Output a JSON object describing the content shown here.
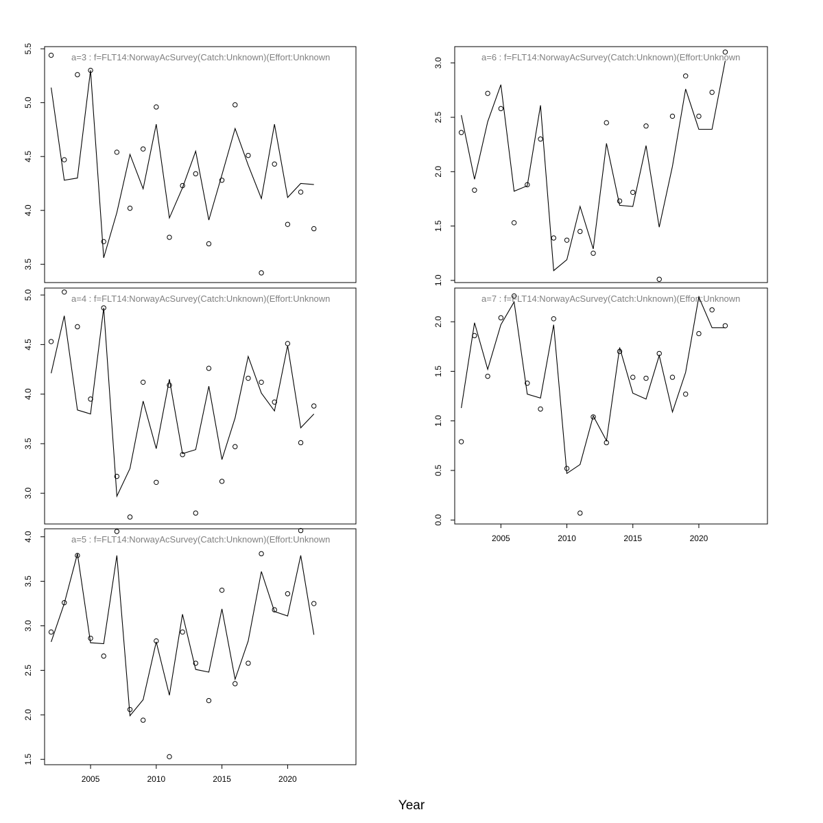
{
  "figure": {
    "xlabel": "Year"
  },
  "chart_data": [
    {
      "type": "line",
      "title": "a=3  :  f=FLT14:NorwayAcSurvey(Catch:Unknown)(Effort:Unknown",
      "xlim": [
        2001.5,
        2025.2
      ],
      "ylim": [
        3.33,
        5.52
      ],
      "yticks": [
        "3.5",
        "4.0",
        "4.5",
        "5.0",
        "5.5"
      ],
      "xticks": [],
      "x": [
        2002,
        2003,
        2004,
        2005,
        2006,
        2007,
        2008,
        2009,
        2010,
        2011,
        2012,
        2013,
        2014,
        2015,
        2016,
        2017,
        2018,
        2019,
        2020,
        2021,
        2022
      ],
      "series": [
        {
          "kind": "line",
          "values": [
            5.14,
            4.28,
            4.3,
            5.3,
            3.56,
            3.98,
            4.52,
            4.2,
            4.8,
            3.93,
            4.21,
            4.55,
            3.91,
            4.33,
            4.76,
            4.42,
            4.11,
            4.8,
            4.12,
            4.25,
            4.24
          ]
        },
        {
          "kind": "points",
          "values": [
            5.44,
            4.47,
            5.26,
            5.3,
            3.71,
            4.54,
            4.02,
            4.57,
            4.96,
            3.75,
            4.23,
            4.34,
            3.69,
            4.28,
            4.98,
            4.51,
            3.42,
            4.43,
            3.87,
            4.17,
            3.83
          ]
        }
      ]
    },
    {
      "type": "line",
      "title": "a=4  :  f=FLT14:NorwayAcSurvey(Catch:Unknown)(Effort:Unknown",
      "xlim": [
        2001.5,
        2025.2
      ],
      "ylim": [
        2.69,
        5.07
      ],
      "yticks": [
        "3.0",
        "3.5",
        "4.0",
        "4.5",
        "5.0"
      ],
      "xticks": [],
      "x": [
        2002,
        2003,
        2004,
        2005,
        2006,
        2007,
        2008,
        2009,
        2010,
        2011,
        2012,
        2013,
        2014,
        2015,
        2016,
        2017,
        2018,
        2019,
        2020,
        2021,
        2022
      ],
      "series": [
        {
          "kind": "line",
          "values": [
            4.21,
            4.79,
            3.84,
            3.8,
            4.87,
            2.97,
            3.25,
            3.93,
            3.45,
            4.15,
            3.4,
            3.44,
            4.08,
            3.34,
            3.76,
            4.38,
            4.01,
            3.83,
            4.49,
            3.66,
            3.8
          ]
        },
        {
          "kind": "points",
          "values": [
            4.53,
            5.03,
            4.68,
            3.95,
            4.87,
            3.17,
            2.76,
            4.12,
            3.11,
            4.09,
            3.39,
            2.8,
            4.26,
            3.12,
            3.47,
            4.16,
            4.12,
            3.92,
            4.51,
            3.51,
            3.88
          ]
        }
      ]
    },
    {
      "type": "line",
      "title": "a=5  :  f=FLT14:NorwayAcSurvey(Catch:Unknown)(Effort:Unknown",
      "xlim": [
        2001.5,
        2025.2
      ],
      "ylim": [
        1.44,
        4.09
      ],
      "yticks": [
        "1.5",
        "2.0",
        "2.5",
        "3.0",
        "3.5",
        "4.0"
      ],
      "xticks": [
        "2005",
        "2010",
        "2015",
        "2020"
      ],
      "x": [
        2002,
        2003,
        2004,
        2005,
        2006,
        2007,
        2008,
        2009,
        2010,
        2011,
        2012,
        2013,
        2014,
        2015,
        2016,
        2017,
        2018,
        2019,
        2020,
        2021,
        2022
      ],
      "series": [
        {
          "kind": "line",
          "values": [
            2.82,
            3.25,
            3.81,
            2.81,
            2.8,
            3.79,
            1.99,
            2.17,
            2.82,
            2.22,
            3.13,
            2.51,
            2.48,
            3.19,
            2.4,
            2.83,
            3.61,
            3.16,
            3.11,
            3.79,
            2.9
          ]
        },
        {
          "kind": "points",
          "values": [
            2.93,
            3.26,
            3.79,
            2.86,
            2.66,
            4.06,
            2.06,
            1.94,
            2.83,
            1.53,
            2.93,
            2.58,
            2.16,
            3.4,
            2.35,
            2.58,
            3.81,
            3.18,
            3.36,
            4.07,
            3.25
          ]
        }
      ]
    },
    {
      "type": "line",
      "title": "a=6  :  f=FLT14:NorwayAcSurvey(Catch:Unknown)(Effort:Unknown",
      "xlim": [
        2001.5,
        2025.2
      ],
      "ylim": [
        0.98,
        3.15
      ],
      "yticks": [
        "1.0",
        "1.5",
        "2.0",
        "2.5",
        "3.0"
      ],
      "xticks": [],
      "x": [
        2002,
        2003,
        2004,
        2005,
        2006,
        2007,
        2008,
        2009,
        2010,
        2011,
        2012,
        2013,
        2014,
        2015,
        2016,
        2017,
        2018,
        2019,
        2020,
        2021,
        2022
      ],
      "series": [
        {
          "kind": "line",
          "values": [
            2.52,
            1.93,
            2.46,
            2.8,
            1.82,
            1.87,
            2.61,
            1.09,
            1.19,
            1.68,
            1.29,
            2.26,
            1.69,
            1.68,
            2.24,
            1.49,
            2.05,
            2.76,
            2.39,
            2.39,
            3.02
          ]
        },
        {
          "kind": "points",
          "values": [
            2.36,
            1.83,
            2.72,
            2.58,
            1.53,
            1.88,
            2.3,
            1.39,
            1.37,
            1.45,
            1.25,
            2.45,
            1.73,
            1.81,
            2.42,
            1.01,
            2.51,
            2.88,
            2.51,
            2.73,
            3.1
          ]
        }
      ]
    },
    {
      "type": "line",
      "title": "a=7  :  f=FLT14:NorwayAcSurvey(Catch:Unknown)(Effort:Unknown",
      "xlim": [
        2001.5,
        2025.2
      ],
      "ylim": [
        -0.04,
        2.34
      ],
      "yticks": [
        "0.0",
        "0.5",
        "1.0",
        "1.5",
        "2.0"
      ],
      "xticks": [
        "2005",
        "2010",
        "2015",
        "2020"
      ],
      "x": [
        2002,
        2003,
        2004,
        2005,
        2006,
        2007,
        2008,
        2009,
        2010,
        2011,
        2012,
        2013,
        2014,
        2015,
        2016,
        2017,
        2018,
        2019,
        2020,
        2021,
        2022
      ],
      "series": [
        {
          "kind": "line",
          "values": [
            1.13,
            1.99,
            1.52,
            1.97,
            2.2,
            1.27,
            1.23,
            1.97,
            0.47,
            0.56,
            1.05,
            0.8,
            1.74,
            1.28,
            1.22,
            1.66,
            1.09,
            1.49,
            2.25,
            1.94,
            1.94
          ]
        },
        {
          "kind": "points",
          "values": [
            0.79,
            1.86,
            1.45,
            2.04,
            2.26,
            1.38,
            1.12,
            2.03,
            0.52,
            0.07,
            1.04,
            0.78,
            1.7,
            1.44,
            1.43,
            1.68,
            1.44,
            1.27,
            1.88,
            2.12,
            1.96
          ]
        }
      ]
    }
  ]
}
